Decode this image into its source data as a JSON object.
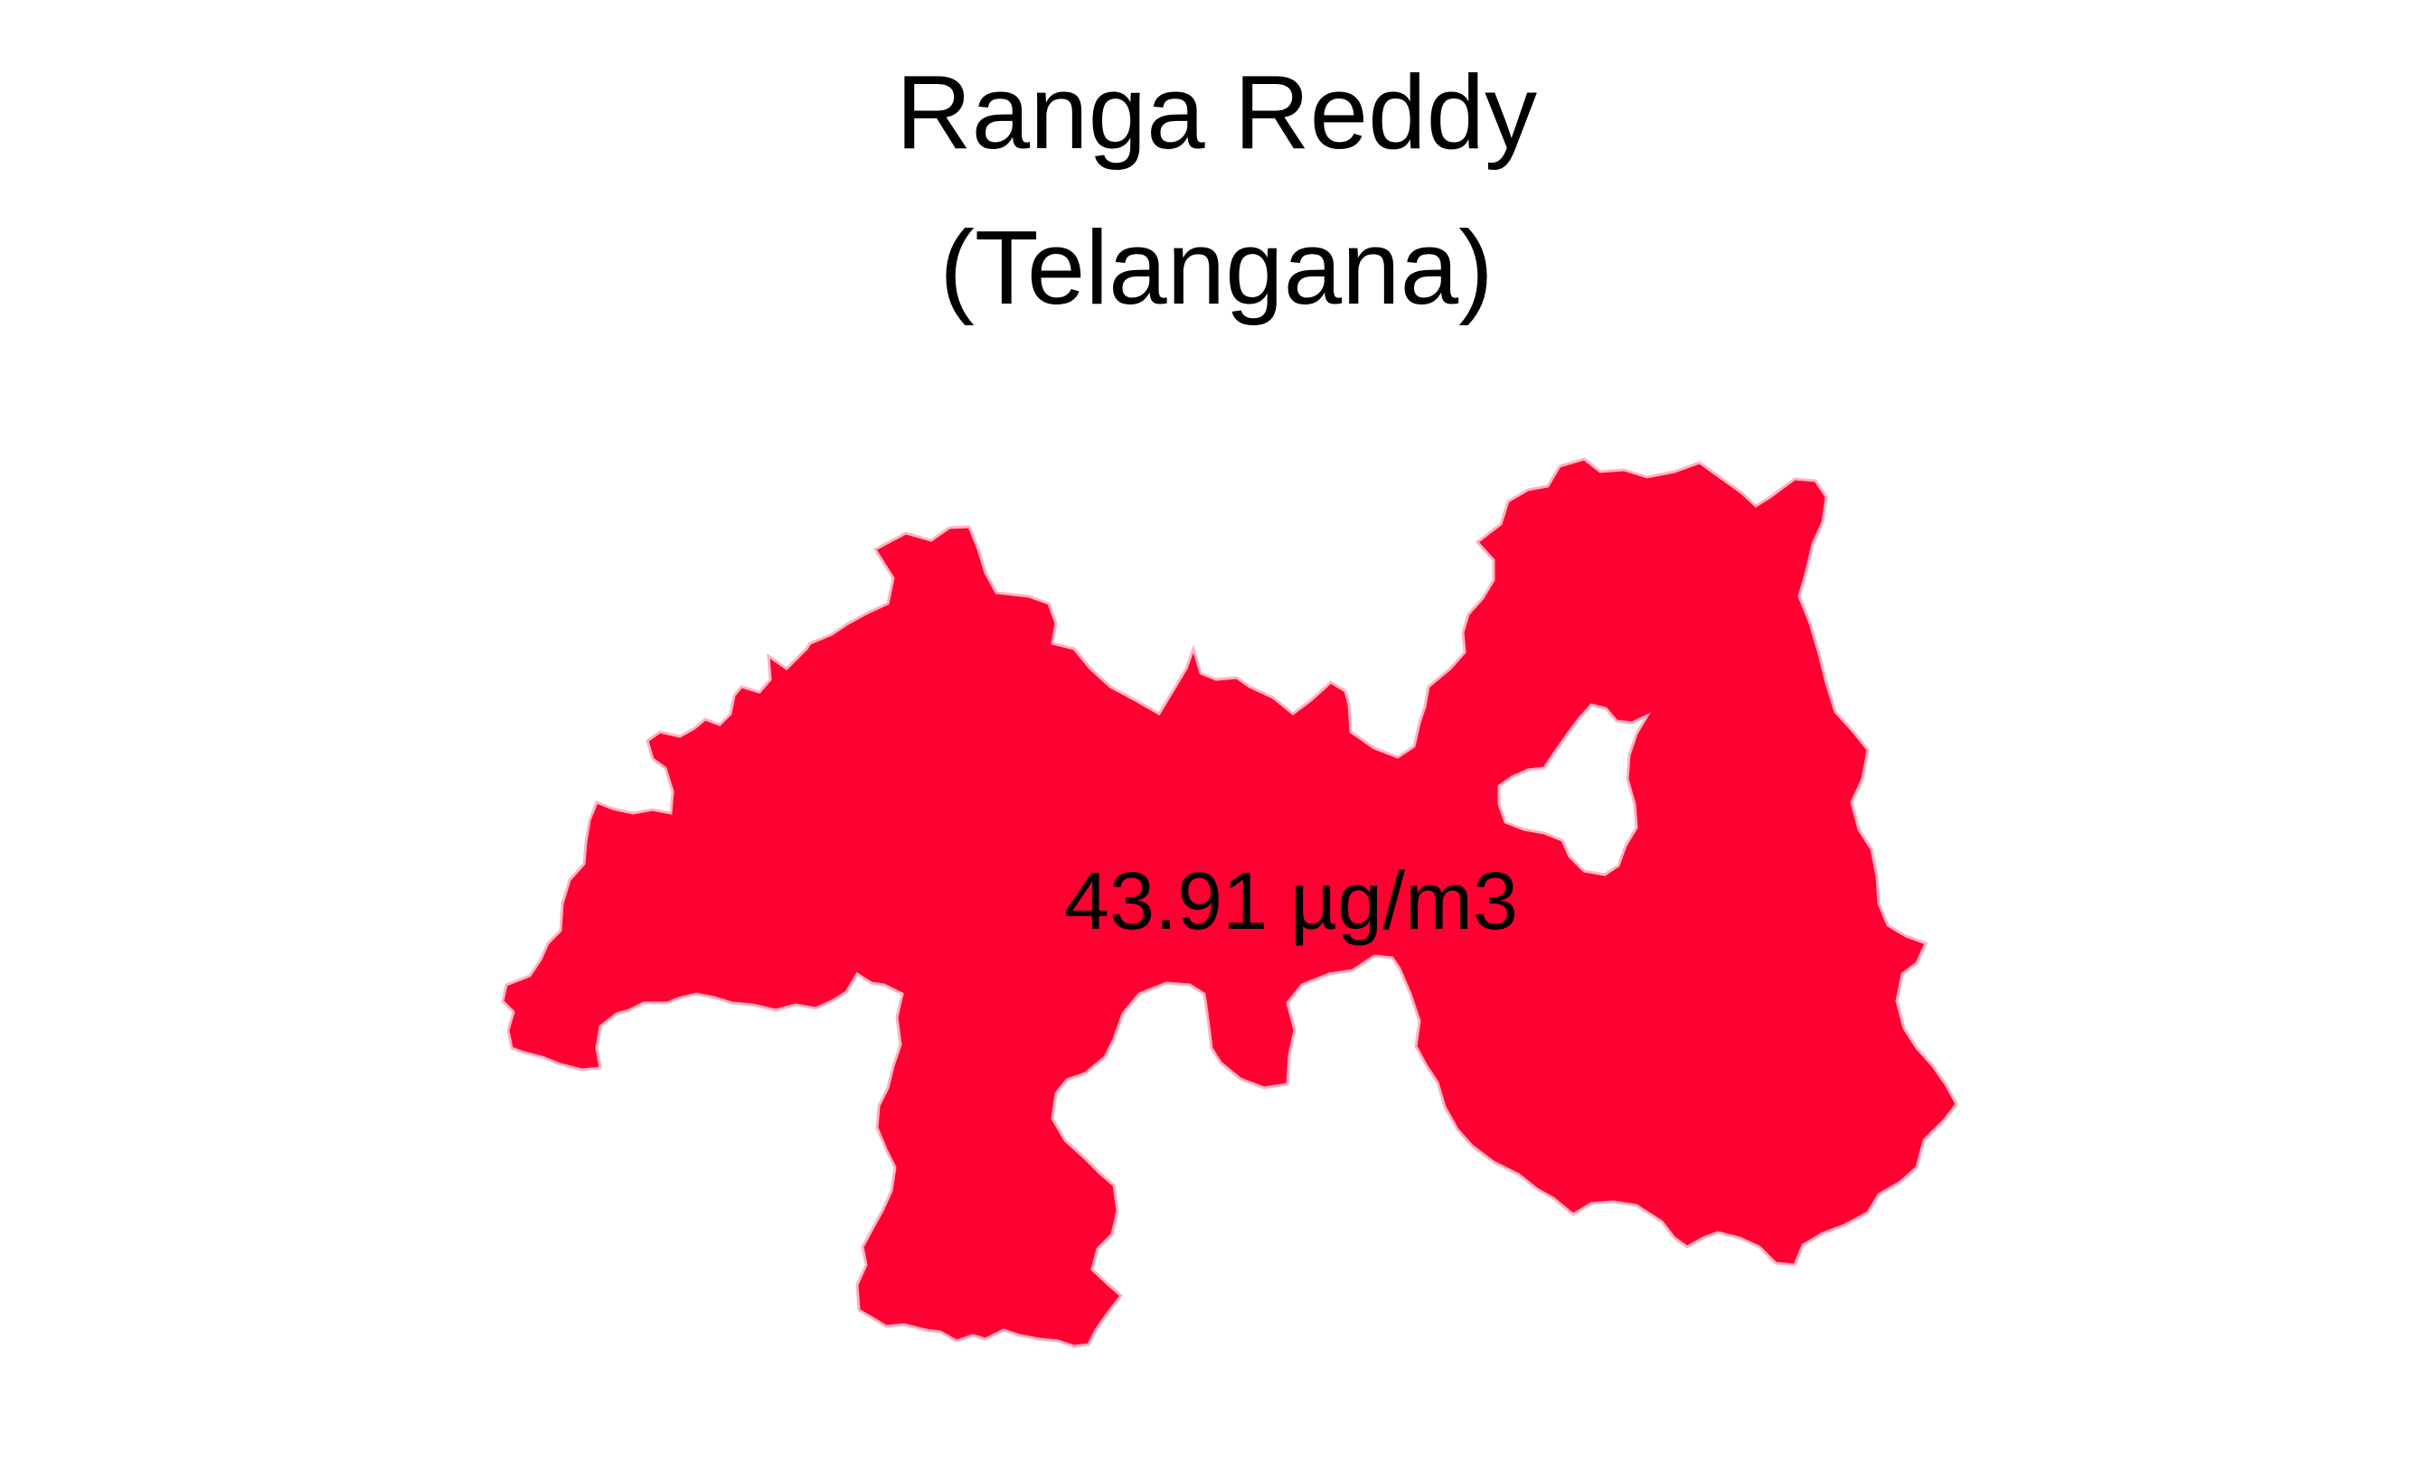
{
  "map": {
    "title_line_1": "Ranga Reddy",
    "title_line_2": "(Telangana)",
    "region_name": "Ranga Reddy",
    "state": "Telangana",
    "value_label": "43.91 µg/m3",
    "value": 43.91,
    "unit": "µg/m3",
    "fill_color": "#FF0033",
    "border_color": "#FFB3C0",
    "background_color": "#FFFFFF"
  }
}
